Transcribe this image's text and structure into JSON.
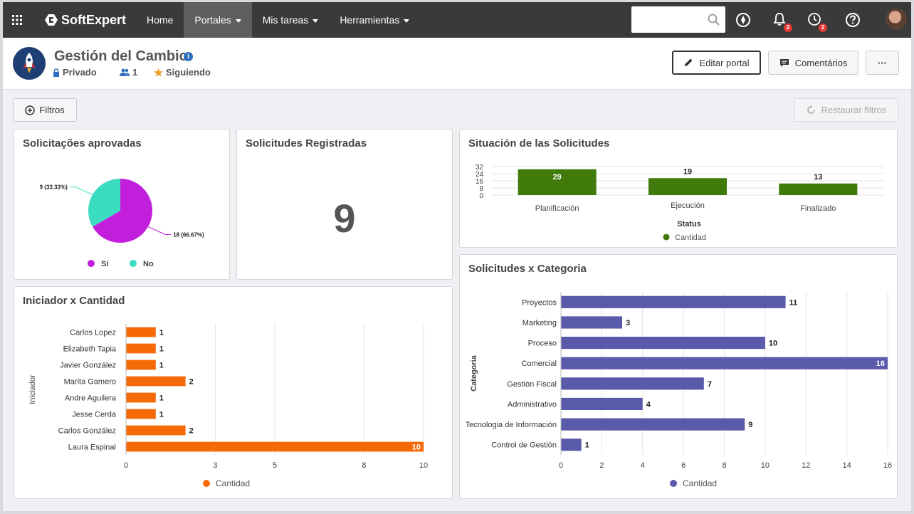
{
  "topnav": {
    "brand": "SoftExpert",
    "items": [
      {
        "label": "Home",
        "dropdown": false,
        "active": false
      },
      {
        "label": "Portales",
        "dropdown": true,
        "active": true
      },
      {
        "label": "Mis tareas",
        "dropdown": true,
        "active": false
      },
      {
        "label": "Herramientas",
        "dropdown": true,
        "active": false
      }
    ],
    "search_placeholder": "",
    "notifications_count": "2",
    "tasks_count": "2"
  },
  "header": {
    "title": "Gestión del Cambio",
    "privacy": "Privado",
    "members": "1",
    "following": "Siguiendo",
    "edit_label": "Editar portal",
    "comments_label": "Comentários",
    "more_label": "···"
  },
  "filters": {
    "filter_label": "Filtros",
    "restore_label": "Restaurar filtros"
  },
  "colors": {
    "pie_si": "#c11fdc",
    "pie_no": "#3cdcc0",
    "status_bar": "#3f7a0a",
    "initiator_bar": "#f56a07",
    "category_bar": "#5a5aaa"
  },
  "cards": {
    "aprovadas": {
      "title": "Solicitações aprovadas"
    },
    "registradas": {
      "title": "Solicitudes Registradas",
      "value": "9"
    },
    "situacion": {
      "title": "Situación de las Solicitudes"
    },
    "iniciador": {
      "title": "Iniciador x Cantidad"
    },
    "categoria": {
      "title": "Solicitudes x Categoria"
    }
  },
  "chart_data": [
    {
      "id": "aprovadas",
      "type": "pie",
      "title": "Solicitações aprovadas",
      "labels": [
        "Sí",
        "No"
      ],
      "values": [
        18,
        9
      ],
      "data_labels": [
        "18 (66.67%)",
        "9 (33.33%)"
      ],
      "legend": "bottom"
    },
    {
      "id": "situacion",
      "type": "bar",
      "title": "Situación de las Solicitudes",
      "categories": [
        "Planificación",
        "Ejecución",
        "Finalizado"
      ],
      "series": [
        {
          "name": "Cantidad",
          "values": [
            29,
            19,
            13
          ]
        }
      ],
      "xlabel": "Status",
      "ylim": [
        0,
        32
      ],
      "yticks": [
        0,
        8,
        16,
        24,
        32
      ],
      "legend": "bottom"
    },
    {
      "id": "iniciador",
      "type": "bar",
      "orientation": "horizontal",
      "title": "Iniciador x Cantidad",
      "categories": [
        "Carlos Lopez",
        "Elizabeth Tapia",
        "Javier González",
        "Marita Gamero",
        "Andre Aguilera",
        "Jesse Cerda",
        "Carlos González",
        "Laura Espinal"
      ],
      "series": [
        {
          "name": "Cantidad",
          "values": [
            1,
            1,
            1,
            2,
            1,
            1,
            2,
            10
          ]
        }
      ],
      "ylabel": "Iniciador",
      "xlim": [
        0,
        10
      ],
      "xticks": [
        0,
        3,
        5,
        8,
        10
      ],
      "legend": "bottom"
    },
    {
      "id": "categoria",
      "type": "bar",
      "orientation": "horizontal",
      "title": "Solicitudes x Categoria",
      "categories": [
        "Proyectos",
        "Marketing",
        "Proceso",
        "Comercial",
        "Gestión Fiscal",
        "Administrativo",
        "Tecnologia de Información",
        "Control de Gestión"
      ],
      "series": [
        {
          "name": "Cantidad",
          "values": [
            11,
            3,
            10,
            16,
            7,
            4,
            9,
            1
          ]
        }
      ],
      "ylabel": "Categoria",
      "xlim": [
        0,
        16
      ],
      "xticks": [
        0,
        2,
        4,
        6,
        8,
        10,
        12,
        14,
        16
      ],
      "legend": "bottom"
    }
  ]
}
